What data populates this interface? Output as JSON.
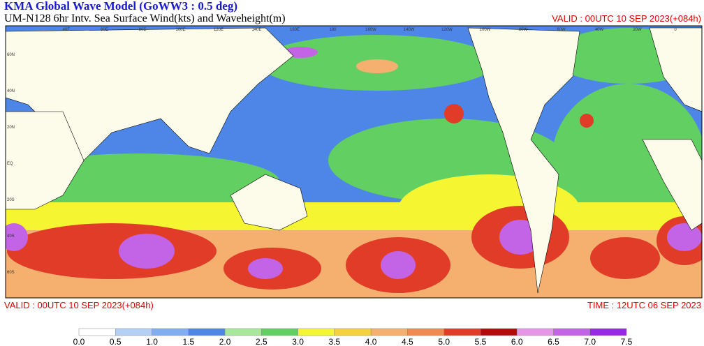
{
  "header": {
    "title": "KMA  Global Wave Model (GoWW3 : 0.5 deg)",
    "subtitle": "UM-N128  6hr Intv. Sea Surface Wind(kts) and Waveheight(m)",
    "valid_top": "VALID : 00UTC 10 SEP 2023(+084h)"
  },
  "footer": {
    "valid": "VALID : 00UTC 10 SEP 2023(+084h)",
    "time": "TIME : 12UTC 06 SEP 2023"
  },
  "map": {
    "lon_labels": [
      "40E",
      "60E",
      "80E",
      "100E",
      "120E",
      "140E",
      "160E",
      "180",
      "160W",
      "140W",
      "120W",
      "100W",
      "80W",
      "60W",
      "40W",
      "20W",
      "0"
    ],
    "lat_labels": [
      "60N",
      "40N",
      "20N",
      "EQ",
      "20S",
      "40S",
      "60S"
    ]
  },
  "legend": {
    "labels": [
      "0.0",
      "0.5",
      "1.0",
      "1.5",
      "2.0",
      "2.5",
      "3.0",
      "3.5",
      "4.0",
      "4.5",
      "5.0",
      "5.5",
      "6.0",
      "6.5",
      "7.0",
      "7.5"
    ],
    "colors": [
      "#ffffff",
      "#b4d0f5",
      "#80aef0",
      "#4d86e6",
      "#a8e89a",
      "#62cf62",
      "#f5f532",
      "#f5d23c",
      "#f5b070",
      "#f08a50",
      "#e03c28",
      "#b40a0a",
      "#e696e6",
      "#c364e6",
      "#9628e6"
    ]
  }
}
